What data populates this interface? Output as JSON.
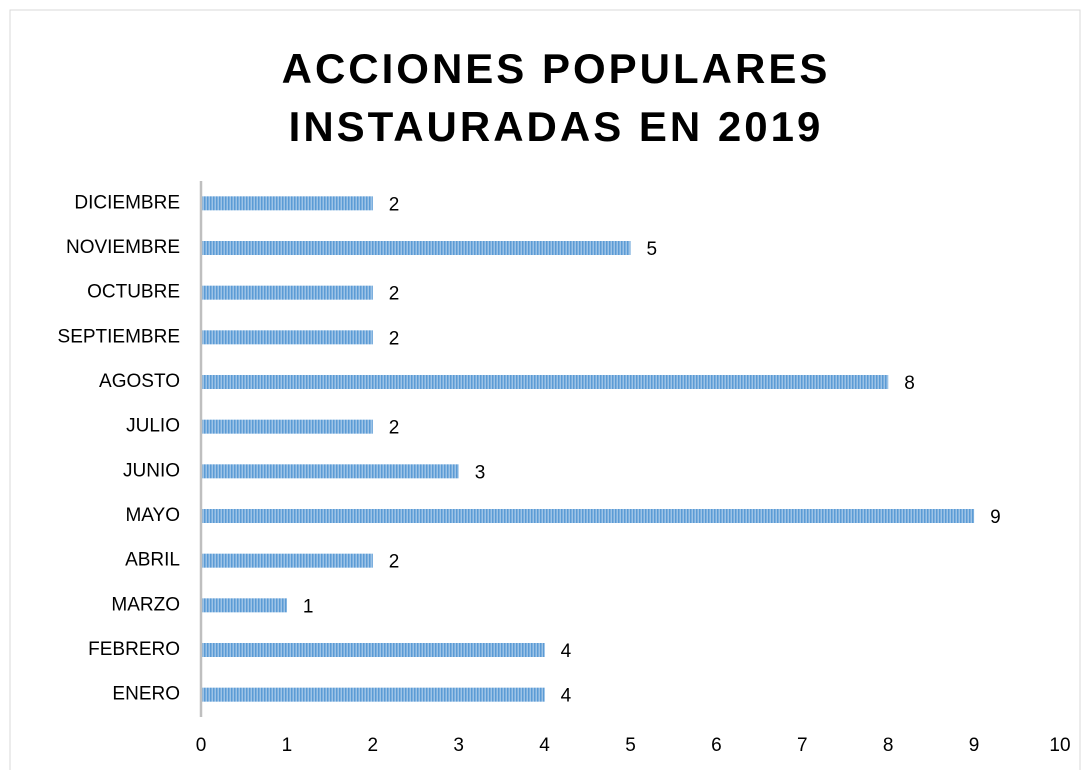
{
  "chart_data": {
    "type": "barh",
    "title": [
      "ACCIONES POPULARES",
      "INSTAURADAS EN 2019"
    ],
    "categories": [
      "ENERO",
      "FEBRERO",
      "MARZO",
      "ABRIL",
      "MAYO",
      "JUNIO",
      "JULIO",
      "AGOSTO",
      "SEPTIEMBRE",
      "OCTUBRE",
      "NOVIEMBRE",
      "DICIEMBRE"
    ],
    "values": [
      4,
      4,
      1,
      2,
      9,
      3,
      2,
      8,
      2,
      2,
      5,
      2
    ],
    "color": "#5b9bd5",
    "xlim": [
      0,
      10
    ],
    "xticks": [
      0,
      1,
      2,
      3,
      4,
      5,
      6,
      7,
      8,
      9,
      10
    ],
    "grid": false
  }
}
